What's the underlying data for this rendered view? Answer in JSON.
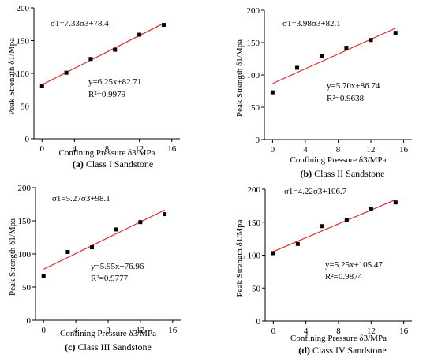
{
  "chart_data": [
    {
      "type": "scatter",
      "caption": "Class I Sandstone",
      "panel_label": "(a)",
      "xlabel": "Confining Pressure δ3/MPa",
      "ylabel": "Peak Strength δ1/Mpa",
      "xlim": [
        -1,
        17
      ],
      "ylim": [
        0,
        200
      ],
      "xticks": [
        0,
        4,
        8,
        12,
        16
      ],
      "yticks": [
        0,
        50,
        100,
        150,
        200
      ],
      "points": [
        [
          0,
          81
        ],
        [
          3,
          101
        ],
        [
          6,
          122
        ],
        [
          9,
          136
        ],
        [
          12,
          159
        ],
        [
          15,
          174
        ]
      ],
      "fit": {
        "slope": 6.25,
        "intercept": 82.71
      },
      "annotation_top": "σ1=7.33σ3+78.4",
      "equation": "y=6.25x+82.71",
      "r2": "R²=0.9979",
      "color_points": "#000000",
      "color_line": "#e32626"
    },
    {
      "type": "scatter",
      "caption": "Class II Sandstone",
      "panel_label": "(b)",
      "xlabel": "Confining Pressure δ3/MPa",
      "ylabel": "Peak Strength δ1/Mpa",
      "xlim": [
        -1,
        17
      ],
      "ylim": [
        0,
        200
      ],
      "xticks": [
        0,
        4,
        8,
        12,
        16
      ],
      "yticks": [
        0,
        50,
        100,
        150,
        200
      ],
      "points": [
        [
          0,
          73
        ],
        [
          3,
          111
        ],
        [
          6,
          129
        ],
        [
          9,
          142
        ],
        [
          12,
          154
        ],
        [
          15,
          165
        ]
      ],
      "fit": {
        "slope": 5.7,
        "intercept": 86.74
      },
      "annotation_top": "σ1=3.98σ3+82.1",
      "equation": "y=5.70x+86.74",
      "r2": "R²=0.9638",
      "color_points": "#000000",
      "color_line": "#e32626"
    },
    {
      "type": "scatter",
      "caption": "Class III Sandstone",
      "panel_label": "(c)",
      "xlabel": "Confining Pressure δ3/MPa",
      "ylabel": "Peak Strength δ1/Mpa",
      "xlim": [
        -1,
        17
      ],
      "ylim": [
        0,
        200
      ],
      "xticks": [
        0,
        4,
        8,
        12,
        16
      ],
      "yticks": [
        0,
        50,
        100,
        150,
        200
      ],
      "points": [
        [
          0,
          67
        ],
        [
          3,
          103
        ],
        [
          6,
          110
        ],
        [
          9,
          137
        ],
        [
          12,
          148
        ],
        [
          15,
          160
        ]
      ],
      "fit": {
        "slope": 5.95,
        "intercept": 76.96
      },
      "annotation_top": "σ1=5.27σ3+98.1",
      "equation": "y=5.95x+76.96",
      "r2": "R²=0.9777",
      "color_points": "#000000",
      "color_line": "#e32626"
    },
    {
      "type": "scatter",
      "caption": "Class IV Sandstone",
      "panel_label": "(d)",
      "xlabel": "Confining Pressure δ3/MPa",
      "ylabel": "Peak Strength δ1/Mpa",
      "xlim": [
        -1,
        17
      ],
      "ylim": [
        0,
        200
      ],
      "xticks": [
        0,
        4,
        8,
        12,
        16
      ],
      "yticks": [
        0,
        50,
        100,
        150,
        200
      ],
      "points": [
        [
          0,
          103
        ],
        [
          3,
          117
        ],
        [
          6,
          144
        ],
        [
          9,
          153
        ],
        [
          12,
          170
        ],
        [
          15,
          180
        ]
      ],
      "fit": {
        "slope": 5.25,
        "intercept": 105.47
      },
      "annotation_top": "σ1=4.22σ3+106.7",
      "equation": "y=5.25x+105.47",
      "r2": "R²=0.9874",
      "color_points": "#000000",
      "color_line": "#e32626"
    }
  ]
}
